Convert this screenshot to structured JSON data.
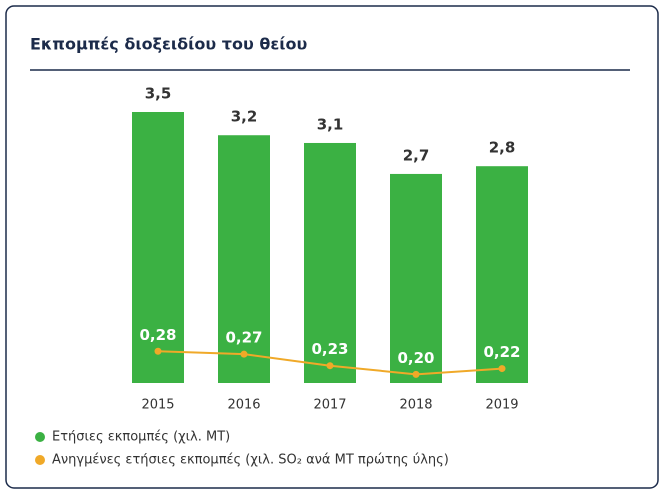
{
  "chart_data": {
    "type": "bar",
    "title": "Εκπομπές διοξειδίου του θείου",
    "categories": [
      "2015",
      "2016",
      "2017",
      "2018",
      "2019"
    ],
    "series": [
      {
        "name": "Ετήσιες εκπομπές (χιλ. MT)",
        "color": "#3bb143",
        "type": "bar",
        "values": [
          3.5,
          3.2,
          3.1,
          2.7,
          2.8
        ],
        "value_labels": [
          "3,5",
          "3,2",
          "3,1",
          "2,7",
          "2,8"
        ]
      },
      {
        "name": "Ανηγμένες ετήσιες εκπομπές (χιλ. SO₂ ανά MT πρώτης ύλης)",
        "color": "#f0a928",
        "type": "line",
        "axis": "y2",
        "values": [
          0.28,
          0.27,
          0.23,
          0.2,
          0.22
        ],
        "value_labels": [
          "0,28",
          "0,27",
          "0,23",
          "0,20",
          "0,22"
        ]
      }
    ],
    "ylim": [
      0,
      3.5
    ],
    "y2lim": [
      0.17,
      1.11
    ]
  }
}
